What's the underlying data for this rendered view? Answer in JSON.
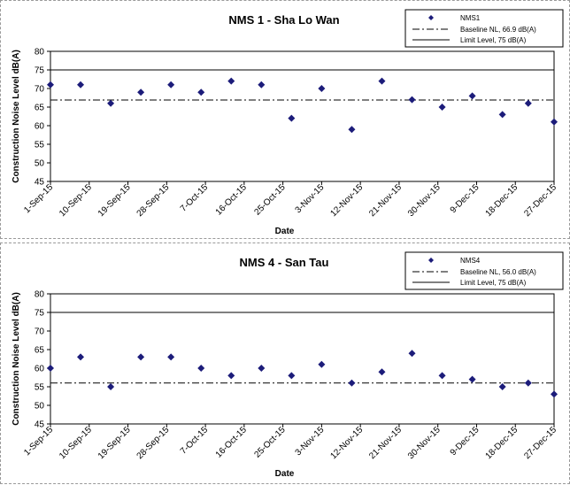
{
  "chart_data": [
    {
      "type": "scatter",
      "title": "NMS 1 - Sha Lo Wan",
      "xlabel": "Date",
      "ylabel": "Construction Noise Level  dB(A)",
      "ylim": [
        45,
        80
      ],
      "yticks": [
        "45",
        "50",
        "55",
        "60",
        "65",
        "70",
        "75",
        "80"
      ],
      "xticks": [
        "1-Sep-15",
        "10-Sep-15",
        "19-Sep-15",
        "28-Sep-15",
        "7-Oct-15",
        "16-Oct-15",
        "25-Oct-15",
        "3-Nov-15",
        "12-Nov-15",
        "21-Nov-15",
        "30-Nov-15",
        "9-Dec-15",
        "18-Dec-15",
        "27-Dec-15"
      ],
      "xlim": [
        "2015-09-01",
        "2015-12-27"
      ],
      "series": [
        {
          "name": "NMS1",
          "color": "#1c1c7a",
          "marker": "diamond",
          "points": [
            {
              "x": "2015-09-01",
              "y": 71
            },
            {
              "x": "2015-09-08",
              "y": 71
            },
            {
              "x": "2015-09-15",
              "y": 66
            },
            {
              "x": "2015-09-22",
              "y": 69
            },
            {
              "x": "2015-09-29",
              "y": 71
            },
            {
              "x": "2015-10-06",
              "y": 69
            },
            {
              "x": "2015-10-13",
              "y": 72
            },
            {
              "x": "2015-10-20",
              "y": 71
            },
            {
              "x": "2015-10-27",
              "y": 62
            },
            {
              "x": "2015-11-03",
              "y": 70
            },
            {
              "x": "2015-11-10",
              "y": 59
            },
            {
              "x": "2015-11-17",
              "y": 72
            },
            {
              "x": "2015-11-24",
              "y": 67
            },
            {
              "x": "2015-12-01",
              "y": 65
            },
            {
              "x": "2015-12-08",
              "y": 68
            },
            {
              "x": "2015-12-15",
              "y": 63
            },
            {
              "x": "2015-12-21",
              "y": 66
            },
            {
              "x": "2015-12-27",
              "y": 61
            }
          ]
        }
      ],
      "reference_lines": [
        {
          "name": "Baseline NL, 66.9 dB(A)",
          "value": 66.9,
          "style": "dash-dot"
        },
        {
          "name": "Limit Level, 75 dB(A)",
          "value": 75,
          "style": "solid"
        }
      ],
      "legend": {
        "position": "top-right",
        "entries": [
          "NMS1",
          "Baseline NL, 66.9 dB(A)",
          "Limit Level, 75 dB(A)"
        ]
      },
      "grid": false
    },
    {
      "type": "scatter",
      "title": "NMS 4 - San Tau",
      "xlabel": "Date",
      "ylabel": "Construction Noise Level  dB(A)",
      "ylim": [
        45,
        80
      ],
      "yticks": [
        "45",
        "50",
        "55",
        "60",
        "65",
        "70",
        "75",
        "80"
      ],
      "xticks": [
        "1-Sep-15",
        "10-Sep-15",
        "19-Sep-15",
        "28-Sep-15",
        "7-Oct-15",
        "16-Oct-15",
        "25-Oct-15",
        "3-Nov-15",
        "12-Nov-15",
        "21-Nov-15",
        "30-Nov-15",
        "9-Dec-15",
        "18-Dec-15",
        "27-Dec-15"
      ],
      "xlim": [
        "2015-09-01",
        "2015-12-27"
      ],
      "series": [
        {
          "name": "NMS4",
          "color": "#1c1c7a",
          "marker": "diamond",
          "points": [
            {
              "x": "2015-09-01",
              "y": 60
            },
            {
              "x": "2015-09-08",
              "y": 63
            },
            {
              "x": "2015-09-15",
              "y": 55
            },
            {
              "x": "2015-09-22",
              "y": 63
            },
            {
              "x": "2015-09-29",
              "y": 63
            },
            {
              "x": "2015-10-06",
              "y": 60
            },
            {
              "x": "2015-10-13",
              "y": 58
            },
            {
              "x": "2015-10-20",
              "y": 60
            },
            {
              "x": "2015-10-27",
              "y": 58
            },
            {
              "x": "2015-11-03",
              "y": 61
            },
            {
              "x": "2015-11-10",
              "y": 56
            },
            {
              "x": "2015-11-17",
              "y": 59
            },
            {
              "x": "2015-11-24",
              "y": 64
            },
            {
              "x": "2015-12-01",
              "y": 58
            },
            {
              "x": "2015-12-08",
              "y": 57
            },
            {
              "x": "2015-12-15",
              "y": 55
            },
            {
              "x": "2015-12-21",
              "y": 56
            },
            {
              "x": "2015-12-27",
              "y": 53
            }
          ]
        }
      ],
      "reference_lines": [
        {
          "name": "Baseline NL, 56.0 dB(A)",
          "value": 56.0,
          "style": "dash-dot"
        },
        {
          "name": "Limit Level, 75 dB(A)",
          "value": 75,
          "style": "solid"
        }
      ],
      "legend": {
        "position": "top-right",
        "entries": [
          "NMS4",
          "Baseline NL, 56.0 dB(A)",
          "Limit Level, 75 dB(A)"
        ]
      },
      "grid": false
    }
  ]
}
